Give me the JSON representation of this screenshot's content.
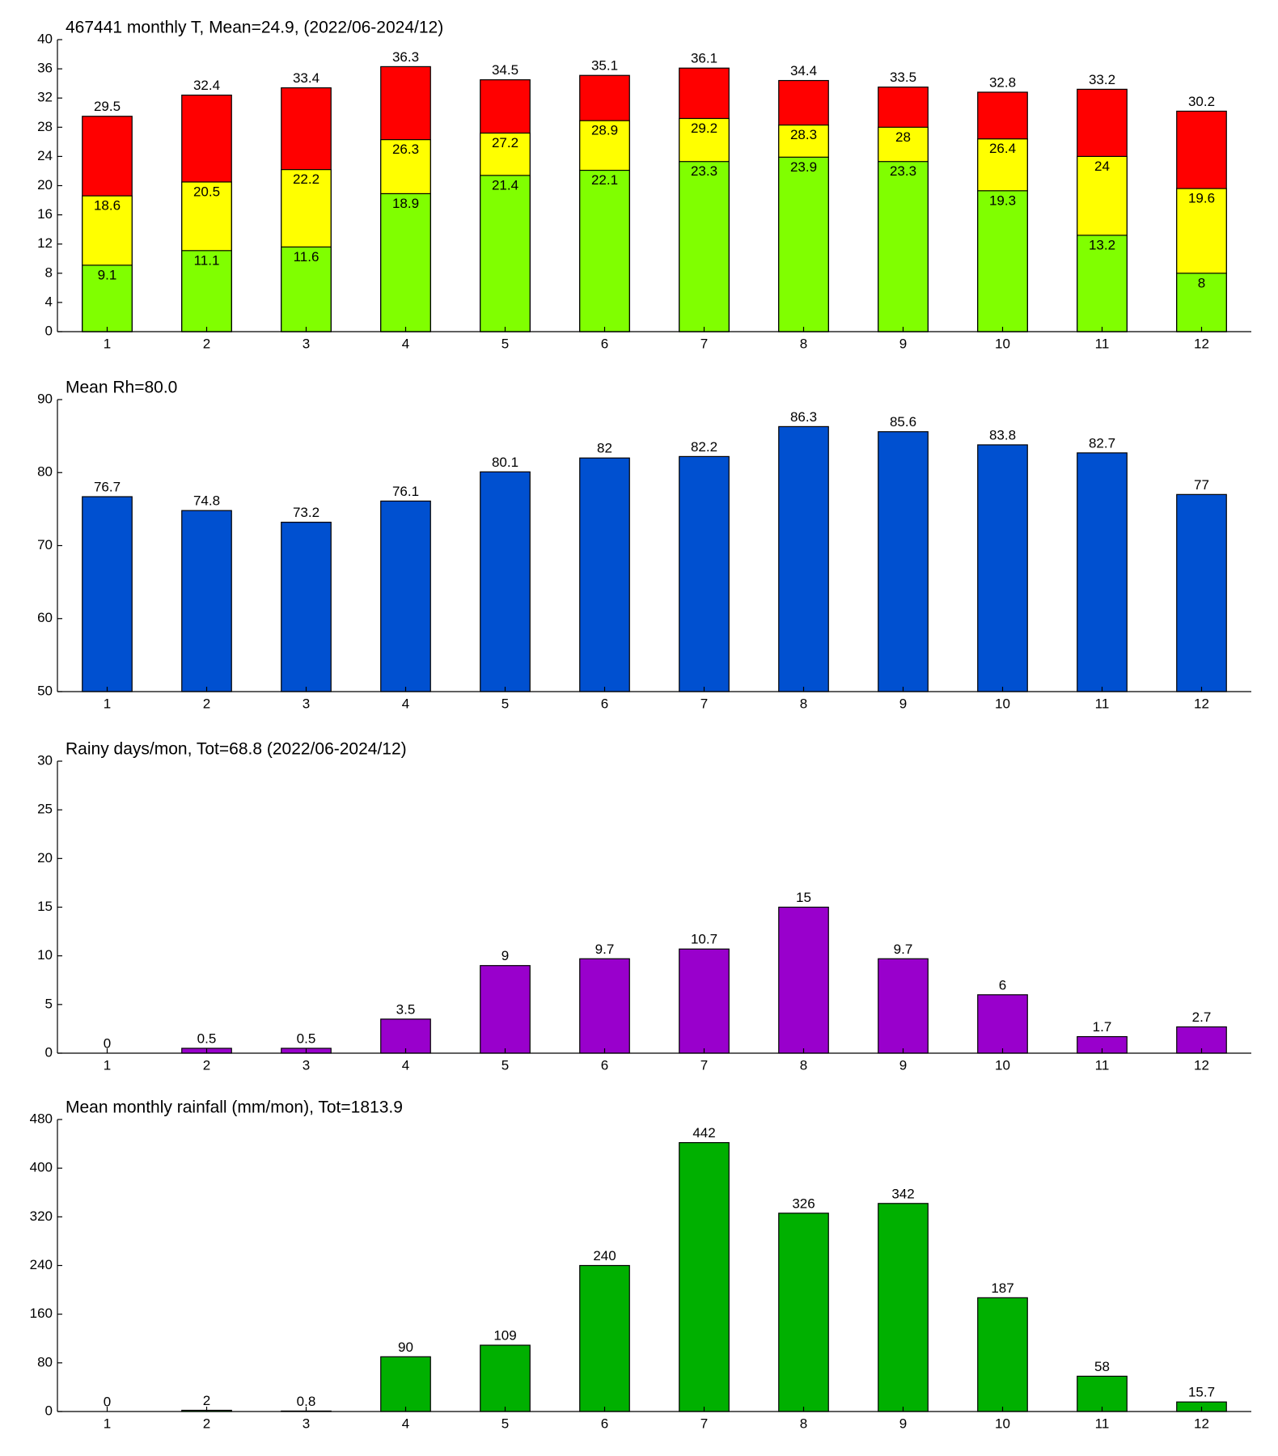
{
  "chart_data": [
    {
      "type": "bar",
      "title": "467441 monthly T, Mean=24.9, (2022/06-2024/12)",
      "categories": [
        "1",
        "2",
        "3",
        "4",
        "5",
        "6",
        "7",
        "8",
        "9",
        "10",
        "11",
        "12"
      ],
      "series": [
        {
          "color": "#ff0000",
          "values": [
            29.5,
            32.4,
            33.4,
            36.3,
            34.5,
            35.1,
            36.1,
            34.4,
            33.5,
            32.8,
            33.2,
            30.2
          ]
        },
        {
          "color": "#ffff00",
          "values": [
            18.6,
            20.5,
            22.2,
            26.3,
            27.2,
            28.9,
            29.2,
            28.3,
            28,
            26.4,
            24,
            19.6
          ]
        },
        {
          "color": "#80ff00",
          "values": [
            9.1,
            11.1,
            11.6,
            18.9,
            21.4,
            22.1,
            23.3,
            23.9,
            23.3,
            19.3,
            13.2,
            8
          ]
        }
      ],
      "ylim": [
        0,
        40
      ],
      "yticks": [
        0,
        4,
        8,
        12,
        16,
        20,
        24,
        28,
        32,
        36,
        40
      ]
    },
    {
      "type": "bar",
      "title": "Mean Rh=80.0",
      "categories": [
        "1",
        "2",
        "3",
        "4",
        "5",
        "6",
        "7",
        "8",
        "9",
        "10",
        "11",
        "12"
      ],
      "series": [
        {
          "color": "#0050d0",
          "values": [
            76.7,
            74.8,
            73.2,
            76.1,
            80.1,
            82,
            82.2,
            86.3,
            85.6,
            83.8,
            82.7,
            77
          ]
        }
      ],
      "ylim": [
        50,
        90
      ],
      "yticks": [
        50,
        60,
        70,
        80,
        90
      ]
    },
    {
      "type": "bar",
      "title": "Rainy days/mon, Tot=68.8 (2022/06-2024/12)",
      "categories": [
        "1",
        "2",
        "3",
        "4",
        "5",
        "6",
        "7",
        "8",
        "9",
        "10",
        "11",
        "12"
      ],
      "series": [
        {
          "color": "#9900cc",
          "values": [
            0,
            0.5,
            0.5,
            3.5,
            9,
            9.7,
            10.7,
            15,
            9.7,
            6,
            1.7,
            2.7
          ]
        }
      ],
      "ylim": [
        0,
        30
      ],
      "yticks": [
        0,
        5,
        10,
        15,
        20,
        25,
        30
      ]
    },
    {
      "type": "bar",
      "title": "Mean monthly rainfall (mm/mon), Tot=1813.9",
      "categories": [
        "1",
        "2",
        "3",
        "4",
        "5",
        "6",
        "7",
        "8",
        "9",
        "10",
        "11",
        "12"
      ],
      "series": [
        {
          "color": "#00b000",
          "values": [
            0,
            2,
            0.8,
            90,
            109,
            240,
            442,
            326,
            342,
            187,
            58,
            15.7
          ]
        }
      ],
      "ylim": [
        0,
        480
      ],
      "yticks": [
        0,
        80,
        160,
        240,
        320,
        400,
        480
      ]
    }
  ]
}
